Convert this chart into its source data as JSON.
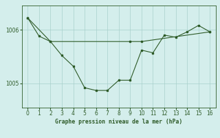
{
  "title": "Graphe pression niveau de la mer (hPa)",
  "bg_color": "#d4eeec",
  "grid_color": "#a8d0cc",
  "line_color": "#2d5a27",
  "text_color": "#2d5a27",
  "x_ticks": [
    0,
    1,
    2,
    3,
    4,
    5,
    6,
    7,
    8,
    9,
    10,
    11,
    12,
    13,
    14,
    15,
    16
  ],
  "xlim": [
    -0.5,
    16.5
  ],
  "ylim": [
    1004.55,
    1006.45
  ],
  "yticks": [
    1005.0,
    1006.0
  ],
  "main_x": [
    0,
    1,
    2,
    3,
    4,
    5,
    6,
    7,
    8,
    9,
    10,
    11,
    12,
    13,
    14,
    15,
    16
  ],
  "main_y": [
    1006.22,
    1005.88,
    1005.78,
    1005.52,
    1005.32,
    1004.92,
    1004.87,
    1004.87,
    1005.06,
    1005.06,
    1005.62,
    1005.57,
    1005.9,
    1005.86,
    1005.96,
    1006.08,
    1005.96
  ],
  "smooth_x": [
    0,
    2,
    9,
    10,
    16
  ],
  "smooth_y": [
    1006.22,
    1005.78,
    1005.78,
    1005.78,
    1005.96
  ],
  "tick_fontsize": 5.5,
  "label_fontsize": 5.8,
  "linewidth": 0.8,
  "markersize": 2.0
}
